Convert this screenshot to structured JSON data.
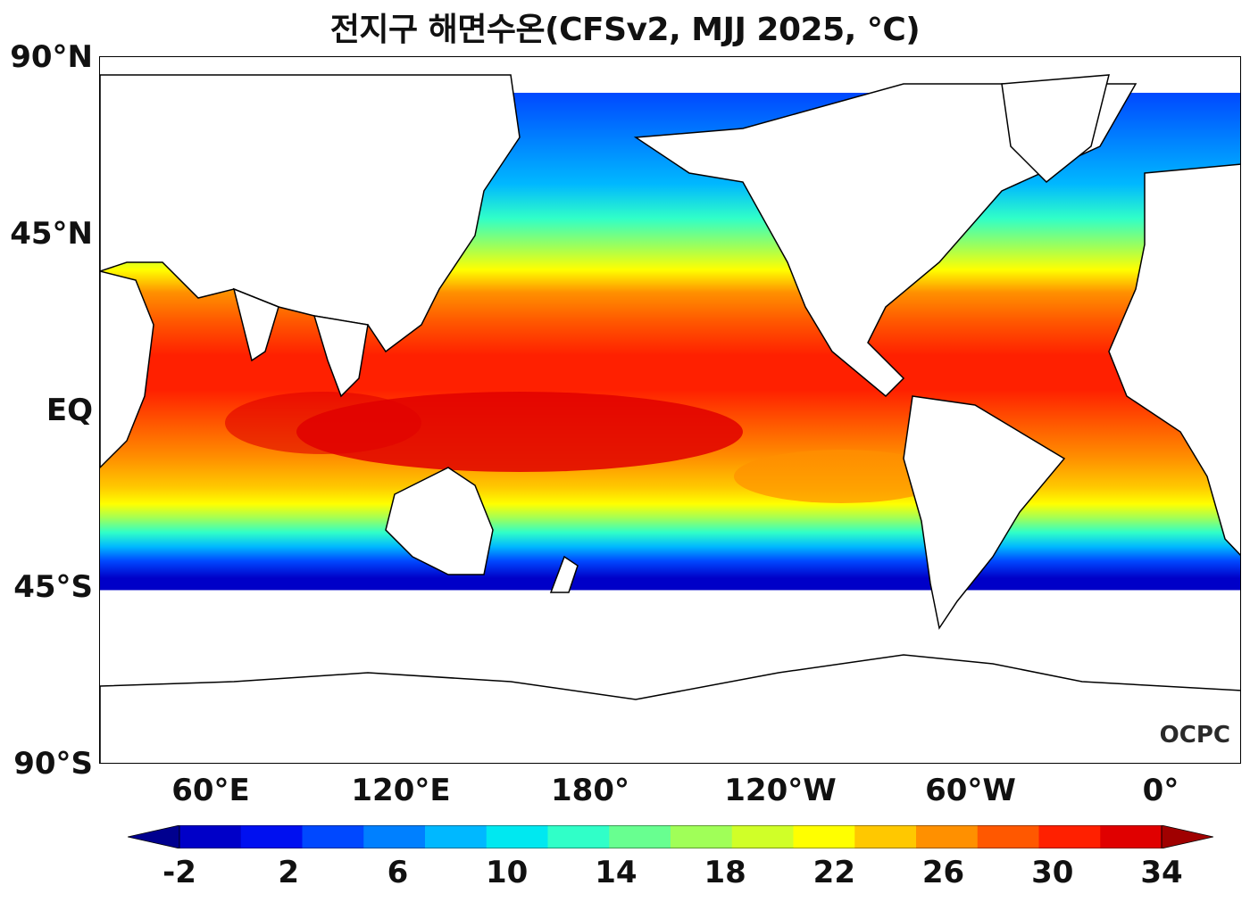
{
  "title": "전지구 해면수온(CFSv2, MJJ 2025, °C)",
  "logo": "OCPC",
  "lat_labels": [
    "90°N",
    "45°N",
    "EQ",
    "45°S",
    "90°S"
  ],
  "lon_labels": [
    "60°E",
    "120°E",
    "180°",
    "120°W",
    "60°W",
    "0°"
  ],
  "colorbar": {
    "ticks": [
      "-2",
      "2",
      "6",
      "10",
      "14",
      "18",
      "22",
      "26",
      "30",
      "34"
    ],
    "colors": [
      "#00008f",
      "#0000c8",
      "#0010f0",
      "#0048ff",
      "#0080ff",
      "#00b8ff",
      "#00e8f0",
      "#30ffc8",
      "#68ff90",
      "#a0ff58",
      "#d0ff28",
      "#ffff00",
      "#ffc800",
      "#ff9000",
      "#ff5800",
      "#ff2000",
      "#e00000",
      "#a00000"
    ],
    "extend": "both"
  }
}
